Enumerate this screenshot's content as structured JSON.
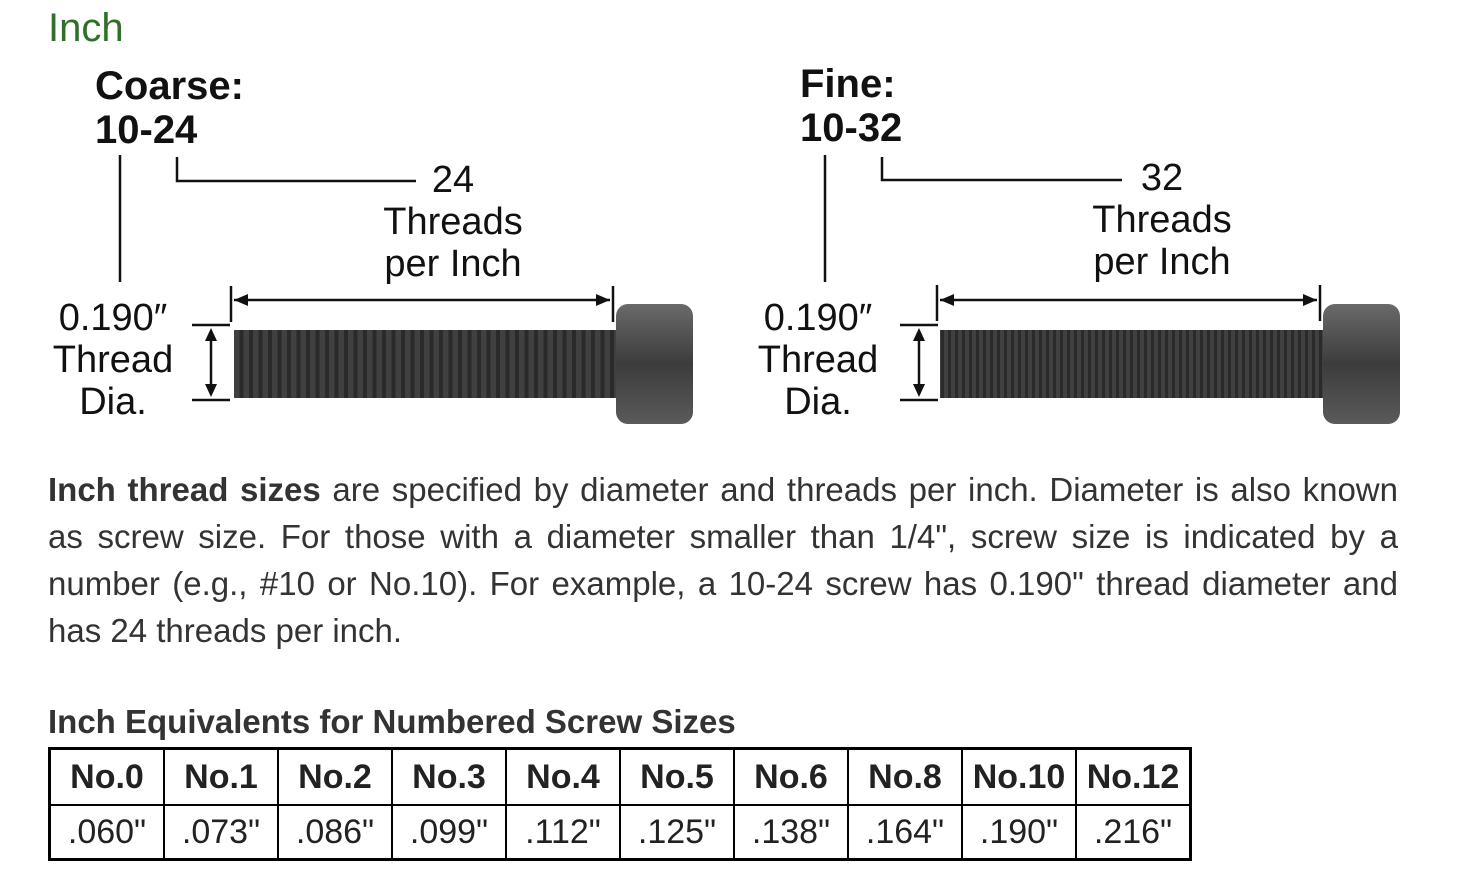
{
  "section_title": "Inch",
  "diagrams": {
    "coarse": {
      "heading": "Coarse:",
      "size": "10-24",
      "tpi": "24",
      "tpi_line1": "Threads",
      "tpi_line2": "per Inch",
      "dia_value": "0.190″",
      "dia_line2": "Thread",
      "dia_line3": "Dia."
    },
    "fine": {
      "heading": "Fine:",
      "size": "10-32",
      "tpi": "32",
      "tpi_line1": "Threads",
      "tpi_line2": "per Inch",
      "dia_value": "0.190″",
      "dia_line2": "Thread",
      "dia_line3": "Dia."
    }
  },
  "paragraph": {
    "bold": "Inch thread sizes",
    "text": " are specified by diameter and threads per inch. Diameter is also known as screw size. For those with a diameter smaller than 1/4\", screw size is indicated by a number (e.g., #10 or No.10). For example, a 10-24 screw has 0.190\" thread diameter and has 24 threads per inch."
  },
  "table": {
    "title": "Inch Equivalents for Numbered Screw Sizes",
    "headers": [
      "No.0",
      "No.1",
      "No.2",
      "No.3",
      "No.4",
      "No.5",
      "No.6",
      "No.8",
      "No.10",
      "No.12"
    ],
    "values": [
      ".060\"",
      ".073\"",
      ".086\"",
      ".099\"",
      ".112\"",
      ".125\"",
      ".138\"",
      ".164\"",
      ".190\"",
      ".216\""
    ]
  },
  "colors": {
    "title_green": "#2f6f2a",
    "screw_dark": "#3a3a3a"
  }
}
